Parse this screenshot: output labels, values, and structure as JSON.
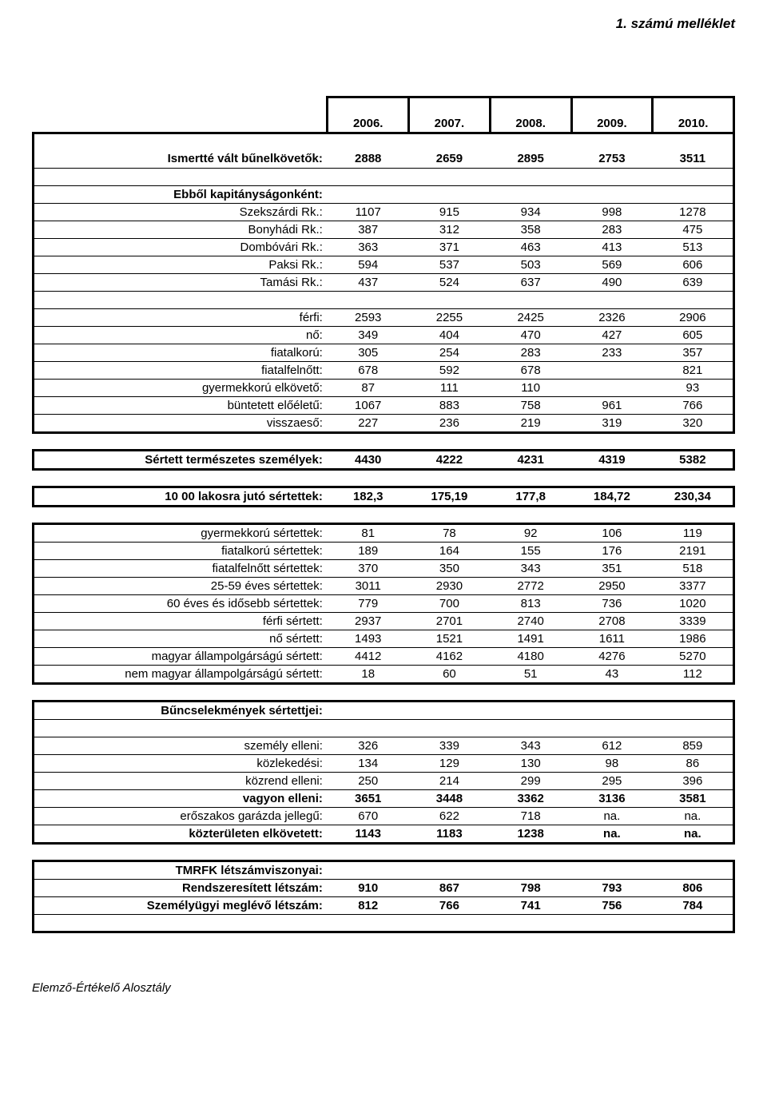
{
  "page_title": "1. számú melléklet",
  "footer": "Elemző-Értékelő Alosztály",
  "years": [
    "2006.",
    "2007.",
    "2008.",
    "2009.",
    "2010."
  ],
  "colors": {
    "border": "#000000",
    "background": "#ffffff",
    "text": "#000000"
  },
  "font": {
    "family": "Arial",
    "title_size": 17,
    "body_size": 15
  },
  "rows": [
    {
      "label": "Ismertté vált bűnelkövetők:",
      "v": [
        "2888",
        "2659",
        "2895",
        "2753",
        "3511"
      ],
      "bold": true
    },
    {
      "label": "Ebből kapitányságonként:",
      "v": [
        "",
        "",
        "",
        "",
        ""
      ],
      "bold": true
    },
    {
      "label": "Szekszárdi Rk.:",
      "v": [
        "1107",
        "915",
        "934",
        "998",
        "1278"
      ],
      "bold": false
    },
    {
      "label": "Bonyhádi Rk.:",
      "v": [
        "387",
        "312",
        "358",
        "283",
        "475"
      ],
      "bold": false
    },
    {
      "label": "Dombóvári Rk.:",
      "v": [
        "363",
        "371",
        "463",
        "413",
        "513"
      ],
      "bold": false
    },
    {
      "label": "Paksi Rk.:",
      "v": [
        "594",
        "537",
        "503",
        "569",
        "606"
      ],
      "bold": false
    },
    {
      "label": "Tamási Rk.:",
      "v": [
        "437",
        "524",
        "637",
        "490",
        "639"
      ],
      "bold": false
    },
    {
      "label": "férfi:",
      "v": [
        "2593",
        "2255",
        "2425",
        "2326",
        "2906"
      ],
      "bold": false
    },
    {
      "label": "nő:",
      "v": [
        "349",
        "404",
        "470",
        "427",
        "605"
      ],
      "bold": false
    },
    {
      "label": "fiatalkorú:",
      "v": [
        "305",
        "254",
        "283",
        "233",
        "357"
      ],
      "bold": false
    },
    {
      "label": "fiatalfelnőtt:",
      "v": [
        "678",
        "592",
        "678",
        "",
        "821"
      ],
      "bold": false
    },
    {
      "label": "gyermekkorú elkövető:",
      "v": [
        "87",
        "111",
        "110",
        "",
        "93"
      ],
      "bold": false
    },
    {
      "label": "büntetett előéletű:",
      "v": [
        "1067",
        "883",
        "758",
        "961",
        "766"
      ],
      "bold": false
    },
    {
      "label": "visszaeső:",
      "v": [
        "227",
        "236",
        "219",
        "319",
        "320"
      ],
      "bold": false
    },
    {
      "label": "Sértett természetes személyek:",
      "v": [
        "4430",
        "4222",
        "4231",
        "4319",
        "5382"
      ],
      "bold": true
    },
    {
      "label": "10 00 lakosra jutó sértettek:",
      "v": [
        "182,3",
        "175,19",
        "177,8",
        "184,72",
        "230,34"
      ],
      "bold": true
    },
    {
      "label": "gyermekkorú sértettek:",
      "v": [
        "81",
        "78",
        "92",
        "106",
        "119"
      ],
      "bold": false
    },
    {
      "label": "fiatalkorú sértettek:",
      "v": [
        "189",
        "164",
        "155",
        "176",
        "2191"
      ],
      "bold": false
    },
    {
      "label": "fiatalfelnőtt sértettek:",
      "v": [
        "370",
        "350",
        "343",
        "351",
        "518"
      ],
      "bold": false
    },
    {
      "label": "25-59 éves sértettek:",
      "v": [
        "3011",
        "2930",
        "2772",
        "2950",
        "3377"
      ],
      "bold": false
    },
    {
      "label": "60 éves és idősebb sértettek:",
      "v": [
        "779",
        "700",
        "813",
        "736",
        "1020"
      ],
      "bold": false
    },
    {
      "label": "férfi sértett:",
      "v": [
        "2937",
        "2701",
        "2740",
        "2708",
        "3339"
      ],
      "bold": false
    },
    {
      "label": "nő sértett:",
      "v": [
        "1493",
        "1521",
        "1491",
        "1611",
        "1986"
      ],
      "bold": false
    },
    {
      "label": "magyar állampolgárságú sértett:",
      "v": [
        "4412",
        "4162",
        "4180",
        "4276",
        "5270"
      ],
      "bold": false
    },
    {
      "label": "nem magyar állampolgárságú sértett:",
      "v": [
        "18",
        "60",
        "51",
        "43",
        "112"
      ],
      "bold": false
    },
    {
      "label": "Bűncselekmények sértettjei:",
      "v": [
        "",
        "",
        "",
        "",
        ""
      ],
      "bold": true
    },
    {
      "label": "személy elleni:",
      "v": [
        "326",
        "339",
        "343",
        "612",
        "859"
      ],
      "bold": false
    },
    {
      "label": "közlekedési:",
      "v": [
        "134",
        "129",
        "130",
        "98",
        "86"
      ],
      "bold": false
    },
    {
      "label": "közrend elleni:",
      "v": [
        "250",
        "214",
        "299",
        "295",
        "396"
      ],
      "bold": false
    },
    {
      "label": "vagyon elleni:",
      "v": [
        "3651",
        "3448",
        "3362",
        "3136",
        "3581"
      ],
      "bold": true
    },
    {
      "label": "erőszakos garázda jellegű:",
      "v": [
        "670",
        "622",
        "718",
        "na.",
        "na."
      ],
      "bold": false
    },
    {
      "label": "közterületen elkövetett:",
      "v": [
        "1143",
        "1183",
        "1238",
        "na.",
        "na."
      ],
      "bold": true
    },
    {
      "label": "TMRFK létszámviszonyai:",
      "v": [
        "",
        "",
        "",
        "",
        ""
      ],
      "bold": true
    },
    {
      "label": "Rendszeresített létszám:",
      "v": [
        "910",
        "867",
        "798",
        "793",
        "806"
      ],
      "bold": true
    },
    {
      "label": "Személyügyi meglévő létszám:",
      "v": [
        "812",
        "766",
        "741",
        "756",
        "784"
      ],
      "bold": true
    }
  ]
}
